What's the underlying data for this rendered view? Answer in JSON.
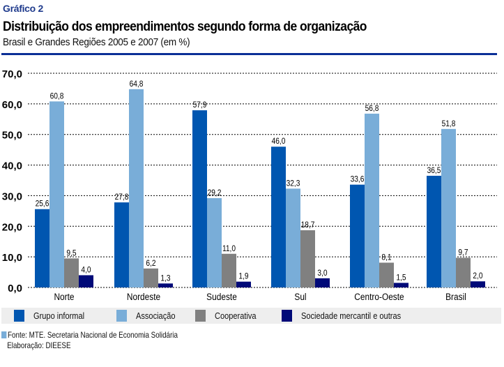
{
  "header": {
    "label": "Gráfico 2",
    "title": "Distribuição dos empreendimentos segundo forma de organização",
    "subtitle": "Brasil e Grandes Regiões  2005 e 2007 (em %)"
  },
  "colors": {
    "header_label": "#1e3a8c",
    "header_rule": "#0b2f96",
    "legend_background": "#eeeeee"
  },
  "chart_data": {
    "type": "bar",
    "title": "Distribuição dos empreendimentos segundo forma de organização",
    "subtitle": "Brasil e Grandes Regiões  2005 e 2007 (em %)",
    "xlabel": "",
    "ylabel": "",
    "ylim": [
      0,
      70
    ],
    "yticks": [
      0,
      10,
      20,
      30,
      40,
      50,
      60,
      70
    ],
    "ytick_labels": [
      "0,0",
      "10,0",
      "20,0",
      "30,0",
      "40,0",
      "50,0",
      "60,0",
      "70,0"
    ],
    "grid": "horizontal dotted",
    "legend_position": "bottom",
    "categories": [
      "Norte",
      "Nordeste",
      "Sudeste",
      "Sul",
      "Centro-Oeste",
      "Brasil"
    ],
    "series": [
      {
        "name": "Grupo informal",
        "color": "#0056b0",
        "values": [
          25.6,
          27.8,
          57.9,
          46.0,
          33.6,
          36.5
        ],
        "labels": [
          "25,6",
          "27,8",
          "57,9",
          "46,0",
          "33,6",
          "36,5"
        ]
      },
      {
        "name": "Associação",
        "color": "#79add8",
        "values": [
          60.8,
          64.8,
          29.2,
          32.3,
          56.8,
          51.8
        ],
        "labels": [
          "60,8",
          "64,8",
          "29,2",
          "32,3",
          "56,8",
          "51,8"
        ]
      },
      {
        "name": "Cooperativa",
        "color": "#808080",
        "values": [
          9.5,
          6.2,
          11.0,
          18.7,
          8.1,
          9.7
        ],
        "labels": [
          "9,5",
          "6,2",
          "11,0",
          "18,7",
          "8,1",
          "9,7"
        ]
      },
      {
        "name": "Sociedade mercantil e outras",
        "color": "#000a78",
        "values": [
          4.0,
          1.3,
          1.9,
          3.0,
          1.5,
          2.0
        ],
        "labels": [
          "4,0",
          "1,3",
          "1,9",
          "3,0",
          "1,5",
          "2,0"
        ]
      }
    ]
  },
  "source": {
    "line1": "Fonte: MTE. Secretaria Nacional de Economia Solidária",
    "line2": "Elaboração: DIEESE"
  }
}
